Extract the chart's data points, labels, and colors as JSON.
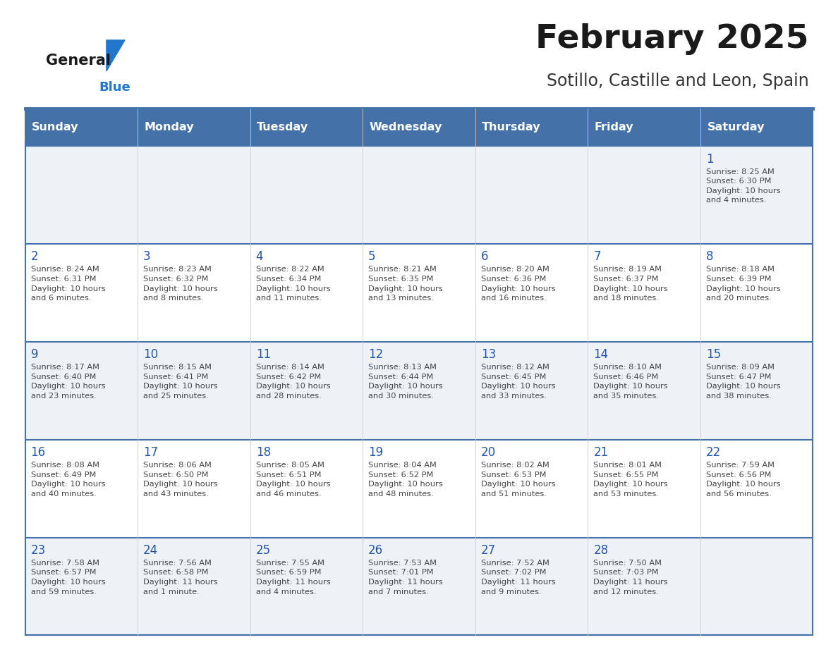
{
  "title": "February 2025",
  "subtitle": "Sotillo, Castille and Leon, Spain",
  "days_of_week": [
    "Sunday",
    "Monday",
    "Tuesday",
    "Wednesday",
    "Thursday",
    "Friday",
    "Saturday"
  ],
  "header_bg": "#4472a8",
  "header_text": "#ffffff",
  "cell_bg_odd": "#eef2f7",
  "cell_bg_even": "#ffffff",
  "day_number_color": "#2255aa",
  "text_color": "#444444",
  "line_color": "#4472a8",
  "calendar_data": [
    [
      null,
      null,
      null,
      null,
      null,
      null,
      {
        "day": 1,
        "sunrise": "8:25 AM",
        "sunset": "6:30 PM",
        "daylight": "10 hours\nand 4 minutes."
      }
    ],
    [
      {
        "day": 2,
        "sunrise": "8:24 AM",
        "sunset": "6:31 PM",
        "daylight": "10 hours\nand 6 minutes."
      },
      {
        "day": 3,
        "sunrise": "8:23 AM",
        "sunset": "6:32 PM",
        "daylight": "10 hours\nand 8 minutes."
      },
      {
        "day": 4,
        "sunrise": "8:22 AM",
        "sunset": "6:34 PM",
        "daylight": "10 hours\nand 11 minutes."
      },
      {
        "day": 5,
        "sunrise": "8:21 AM",
        "sunset": "6:35 PM",
        "daylight": "10 hours\nand 13 minutes."
      },
      {
        "day": 6,
        "sunrise": "8:20 AM",
        "sunset": "6:36 PM",
        "daylight": "10 hours\nand 16 minutes."
      },
      {
        "day": 7,
        "sunrise": "8:19 AM",
        "sunset": "6:37 PM",
        "daylight": "10 hours\nand 18 minutes."
      },
      {
        "day": 8,
        "sunrise": "8:18 AM",
        "sunset": "6:39 PM",
        "daylight": "10 hours\nand 20 minutes."
      }
    ],
    [
      {
        "day": 9,
        "sunrise": "8:17 AM",
        "sunset": "6:40 PM",
        "daylight": "10 hours\nand 23 minutes."
      },
      {
        "day": 10,
        "sunrise": "8:15 AM",
        "sunset": "6:41 PM",
        "daylight": "10 hours\nand 25 minutes."
      },
      {
        "day": 11,
        "sunrise": "8:14 AM",
        "sunset": "6:42 PM",
        "daylight": "10 hours\nand 28 minutes."
      },
      {
        "day": 12,
        "sunrise": "8:13 AM",
        "sunset": "6:44 PM",
        "daylight": "10 hours\nand 30 minutes."
      },
      {
        "day": 13,
        "sunrise": "8:12 AM",
        "sunset": "6:45 PM",
        "daylight": "10 hours\nand 33 minutes."
      },
      {
        "day": 14,
        "sunrise": "8:10 AM",
        "sunset": "6:46 PM",
        "daylight": "10 hours\nand 35 minutes."
      },
      {
        "day": 15,
        "sunrise": "8:09 AM",
        "sunset": "6:47 PM",
        "daylight": "10 hours\nand 38 minutes."
      }
    ],
    [
      {
        "day": 16,
        "sunrise": "8:08 AM",
        "sunset": "6:49 PM",
        "daylight": "10 hours\nand 40 minutes."
      },
      {
        "day": 17,
        "sunrise": "8:06 AM",
        "sunset": "6:50 PM",
        "daylight": "10 hours\nand 43 minutes."
      },
      {
        "day": 18,
        "sunrise": "8:05 AM",
        "sunset": "6:51 PM",
        "daylight": "10 hours\nand 46 minutes."
      },
      {
        "day": 19,
        "sunrise": "8:04 AM",
        "sunset": "6:52 PM",
        "daylight": "10 hours\nand 48 minutes."
      },
      {
        "day": 20,
        "sunrise": "8:02 AM",
        "sunset": "6:53 PM",
        "daylight": "10 hours\nand 51 minutes."
      },
      {
        "day": 21,
        "sunrise": "8:01 AM",
        "sunset": "6:55 PM",
        "daylight": "10 hours\nand 53 minutes."
      },
      {
        "day": 22,
        "sunrise": "7:59 AM",
        "sunset": "6:56 PM",
        "daylight": "10 hours\nand 56 minutes."
      }
    ],
    [
      {
        "day": 23,
        "sunrise": "7:58 AM",
        "sunset": "6:57 PM",
        "daylight": "10 hours\nand 59 minutes."
      },
      {
        "day": 24,
        "sunrise": "7:56 AM",
        "sunset": "6:58 PM",
        "daylight": "11 hours\nand 1 minute."
      },
      {
        "day": 25,
        "sunrise": "7:55 AM",
        "sunset": "6:59 PM",
        "daylight": "11 hours\nand 4 minutes."
      },
      {
        "day": 26,
        "sunrise": "7:53 AM",
        "sunset": "7:01 PM",
        "daylight": "11 hours\nand 7 minutes."
      },
      {
        "day": 27,
        "sunrise": "7:52 AM",
        "sunset": "7:02 PM",
        "daylight": "11 hours\nand 9 minutes."
      },
      {
        "day": 28,
        "sunrise": "7:50 AM",
        "sunset": "7:03 PM",
        "daylight": "11 hours\nand 12 minutes."
      },
      null
    ]
  ]
}
